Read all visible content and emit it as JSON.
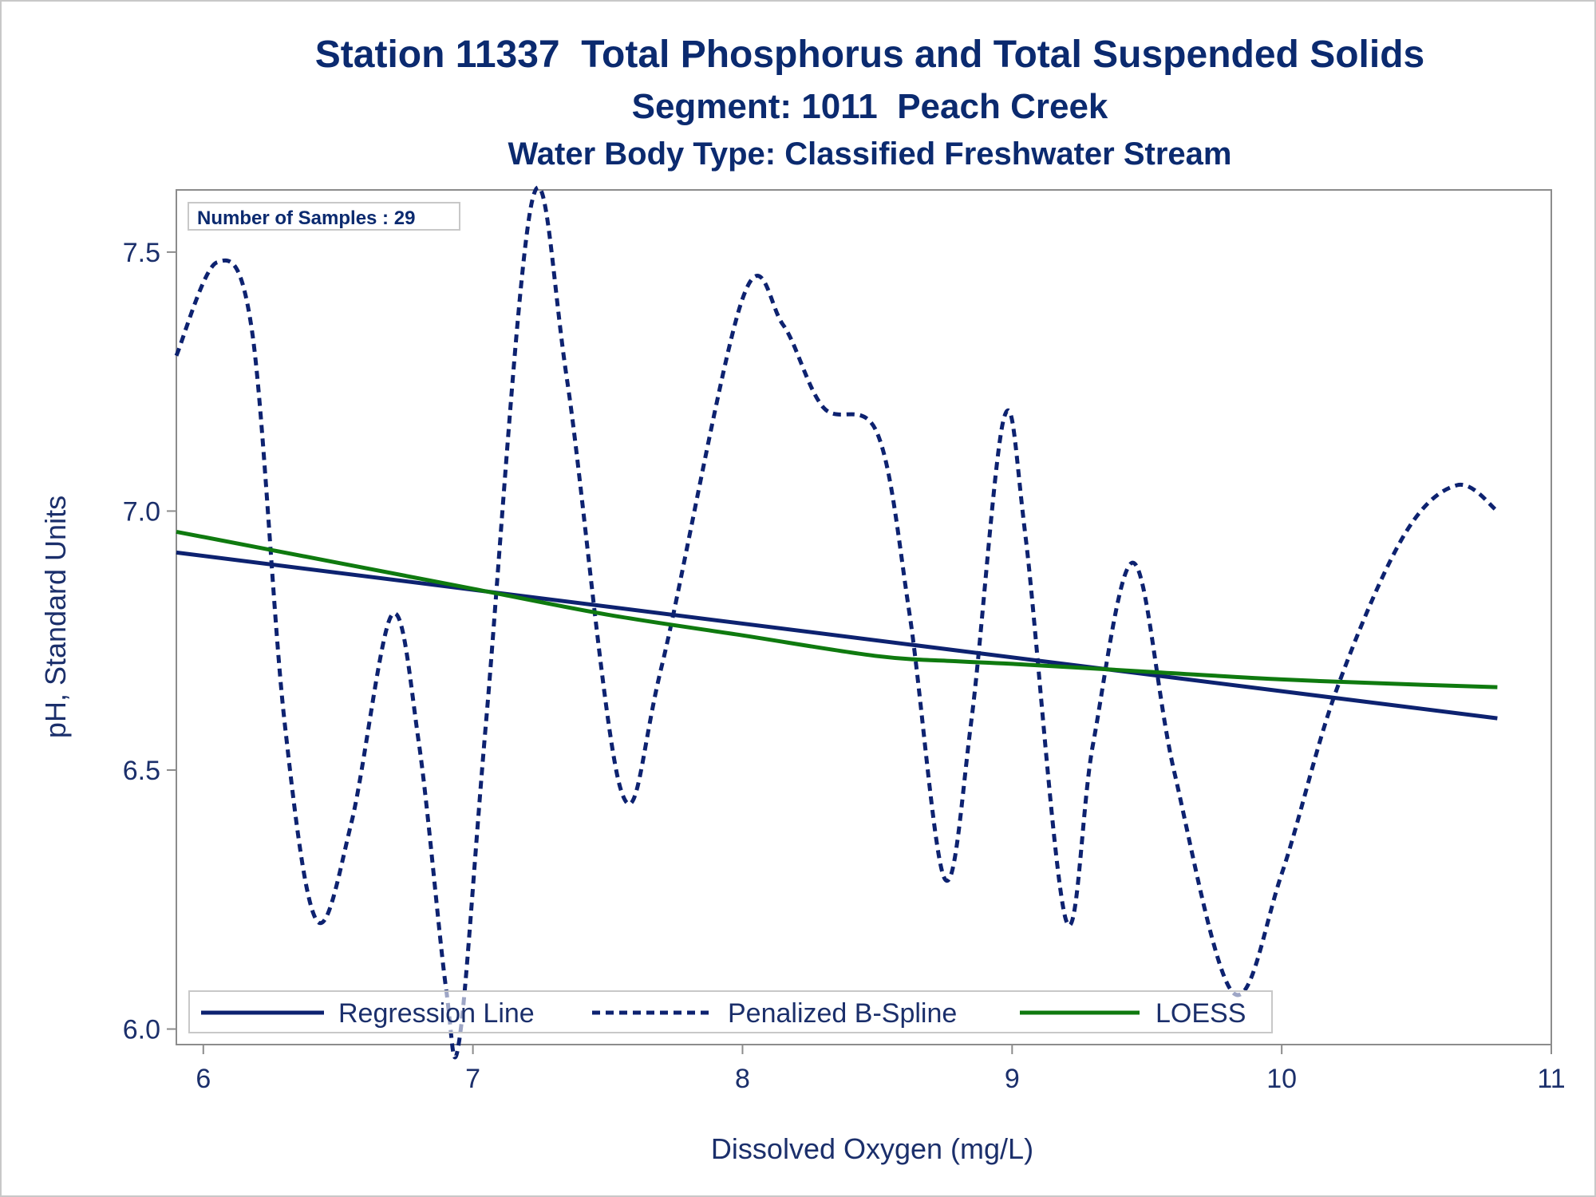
{
  "chart_data": {
    "type": "line",
    "title": "Station 11337  Total Phosphorus and Total Suspended Solids",
    "subtitle": "Segment: 1011  Peach Creek",
    "subtitle2": "Water Body Type: Classified Freshwater Stream",
    "xlabel": "Dissolved Oxygen (mg/L)",
    "ylabel": "pH, Standard Units",
    "xlim": [
      5.9,
      11.0
    ],
    "ylim": [
      5.97,
      7.62
    ],
    "x_ticks": [
      "6",
      "7",
      "8",
      "9",
      "10",
      "11"
    ],
    "y_ticks": [
      "6.0",
      "6.5",
      "7.0",
      "7.5"
    ],
    "inset_label": "Number of Samples : 29",
    "legend_position": "bottom-inside",
    "grid": false,
    "series": [
      {
        "name": "Regression Line",
        "style": "solid",
        "color": "#0d2270",
        "x": [
          5.9,
          10.8
        ],
        "y": [
          6.92,
          6.6
        ]
      },
      {
        "name": "Penalized B-Spline",
        "style": "dashed",
        "color": "#0d2270",
        "x": [
          5.9,
          6.05,
          6.18,
          6.3,
          6.42,
          6.55,
          6.7,
          6.8,
          6.9,
          6.95,
          7.05,
          7.22,
          7.35,
          7.55,
          7.7,
          8.0,
          8.15,
          8.3,
          8.5,
          8.62,
          8.75,
          8.85,
          8.97,
          9.05,
          9.2,
          9.3,
          9.45,
          9.6,
          9.82,
          10.0,
          10.2,
          10.45,
          10.65,
          10.8
        ],
        "y": [
          7.3,
          7.48,
          7.35,
          6.6,
          6.21,
          6.4,
          6.8,
          6.55,
          6.08,
          5.98,
          6.6,
          7.6,
          7.25,
          6.46,
          6.7,
          7.41,
          7.36,
          7.2,
          7.15,
          6.8,
          6.29,
          6.6,
          7.18,
          6.95,
          6.21,
          6.55,
          6.9,
          6.5,
          6.07,
          6.3,
          6.65,
          6.95,
          7.05,
          7.0
        ]
      },
      {
        "name": "LOESS",
        "style": "solid",
        "color": "#0f7a0f",
        "x": [
          5.9,
          6.5,
          7.0,
          7.5,
          8.0,
          8.5,
          8.8,
          9.0,
          9.5,
          10.0,
          10.5,
          10.8
        ],
        "y": [
          6.96,
          6.9,
          6.85,
          6.8,
          6.76,
          6.72,
          6.71,
          6.705,
          6.69,
          6.675,
          6.665,
          6.66
        ]
      }
    ]
  }
}
